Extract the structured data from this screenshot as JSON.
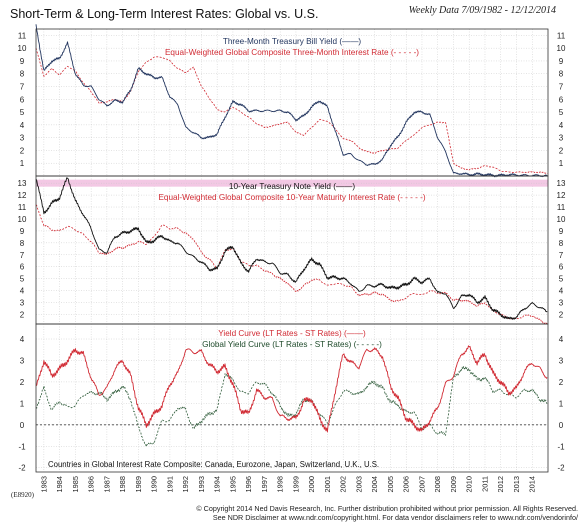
{
  "header": {
    "title": "Short-Term & Long-Term Interest Rates: Global vs. U.S.",
    "date": "Weekly Data 7/09/1982 - 12/12/2014"
  },
  "footer": {
    "code": "(E8920)",
    "copyright": "© Copyright 2014 Ned Davis Research, Inc. Further distribution prohibited without prior permission. All Rights Reserved.",
    "disclaimer": "See NDR Disclaimer at www.ndr.com/copyright.html. For data vendor disclaimers refer to www.ndr.com/vendorinfo/"
  },
  "colors": {
    "us": "#23365f",
    "global": "#d12b34",
    "ust": "#111111",
    "grid": "#c9c9c9",
    "band": "#f3c8e4"
  },
  "chart_data": [
    {
      "type": "line",
      "panel": "short-term",
      "x": [
        1982.5,
        1983.0,
        1983.5,
        1984.0,
        1984.5,
        1985.0,
        1985.5,
        1986.0,
        1986.5,
        1987.0,
        1987.5,
        1988.0,
        1988.5,
        1989.0,
        1989.5,
        1990.0,
        1990.5,
        1991.0,
        1991.5,
        1992.0,
        1992.5,
        1993.0,
        1993.5,
        1994.0,
        1994.5,
        1995.0,
        1995.5,
        1996.0,
        1996.5,
        1997.0,
        1997.5,
        1998.0,
        1998.5,
        1999.0,
        1999.5,
        2000.0,
        2000.5,
        2001.0,
        2001.5,
        2002.0,
        2002.5,
        2003.0,
        2003.5,
        2004.0,
        2004.5,
        2005.0,
        2005.5,
        2006.0,
        2006.5,
        2007.0,
        2007.5,
        2008.0,
        2008.5,
        2009.0,
        2009.5,
        2010.0,
        2010.5,
        2011.0,
        2011.5,
        2012.0,
        2012.5,
        2013.0,
        2013.5,
        2014.0,
        2014.5,
        2014.95
      ],
      "series": [
        {
          "name": "Three-Month Treasury Bill Yield",
          "values": [
            11.8,
            8.2,
            9.0,
            9.2,
            10.4,
            8.0,
            7.1,
            7.0,
            6.0,
            5.5,
            5.9,
            5.8,
            6.7,
            8.4,
            8.0,
            7.7,
            7.7,
            6.2,
            5.6,
            3.8,
            3.4,
            3.0,
            3.0,
            3.3,
            4.6,
            5.8,
            5.6,
            5.1,
            5.1,
            5.1,
            5.1,
            5.1,
            5.0,
            4.4,
            4.7,
            5.4,
            5.9,
            5.4,
            3.5,
            1.7,
            1.7,
            1.2,
            0.9,
            0.9,
            1.3,
            2.4,
            3.1,
            4.2,
            5.0,
            5.0,
            4.8,
            3.0,
            1.9,
            0.2,
            0.2,
            0.1,
            0.15,
            0.1,
            0.05,
            0.05,
            0.1,
            0.08,
            0.05,
            0.05,
            0.03,
            0.02
          ]
        },
        {
          "name": "Equal-Weighted Global Composite Three-Month Interest Rate",
          "values": [
            10.0,
            7.8,
            8.4,
            7.9,
            8.6,
            8.2,
            7.3,
            6.6,
            5.7,
            5.8,
            6.0,
            5.8,
            6.6,
            8.2,
            8.9,
            9.3,
            9.3,
            9.0,
            8.4,
            8.1,
            8.5,
            7.0,
            6.1,
            5.2,
            5.0,
            5.4,
            5.0,
            4.6,
            4.1,
            3.8,
            3.9,
            4.1,
            4.2,
            3.4,
            3.2,
            3.8,
            4.4,
            4.3,
            3.7,
            2.9,
            2.8,
            2.2,
            1.9,
            1.8,
            2.0,
            2.1,
            2.2,
            2.8,
            3.2,
            3.8,
            4.0,
            4.2,
            4.2,
            1.0,
            0.6,
            0.5,
            0.6,
            0.8,
            0.7,
            0.4,
            0.3,
            0.3,
            0.3,
            0.3,
            0.3,
            0.2
          ]
        }
      ],
      "ylim": [
        0,
        11.5
      ],
      "yticks": [
        1,
        2,
        3,
        4,
        5,
        6,
        7,
        8,
        9,
        10,
        11
      ]
    },
    {
      "type": "line",
      "panel": "long-term",
      "x": [
        1982.5,
        1983.0,
        1983.5,
        1984.0,
        1984.5,
        1985.0,
        1985.5,
        1986.0,
        1986.5,
        1987.0,
        1987.5,
        1988.0,
        1988.5,
        1989.0,
        1989.5,
        1990.0,
        1990.5,
        1991.0,
        1991.5,
        1992.0,
        1992.5,
        1993.0,
        1993.5,
        1994.0,
        1994.5,
        1995.0,
        1995.5,
        1996.0,
        1996.5,
        1997.0,
        1997.5,
        1998.0,
        1998.5,
        1999.0,
        1999.5,
        2000.0,
        2000.5,
        2001.0,
        2001.5,
        2002.0,
        2002.5,
        2003.0,
        2003.5,
        2004.0,
        2004.5,
        2005.0,
        2005.5,
        2006.0,
        2006.5,
        2007.0,
        2007.5,
        2008.0,
        2008.5,
        2009.0,
        2009.5,
        2010.0,
        2010.5,
        2011.0,
        2011.5,
        2012.0,
        2012.5,
        2013.0,
        2013.5,
        2014.0,
        2014.5,
        2014.95
      ],
      "series": [
        {
          "name": "10-Year Treasury Note Yield",
          "values": [
            13.5,
            10.5,
            11.3,
            11.8,
            13.5,
            11.5,
            10.4,
            9.2,
            7.4,
            7.2,
            8.5,
            8.8,
            9.0,
            9.2,
            8.0,
            8.2,
            8.6,
            8.1,
            8.0,
            7.3,
            6.8,
            6.4,
            5.8,
            5.8,
            7.3,
            7.7,
            6.3,
            5.6,
            6.7,
            6.4,
            6.3,
            5.5,
            5.3,
            4.7,
            5.8,
            6.6,
            6.2,
            5.1,
            5.1,
            5.0,
            4.6,
            3.9,
            4.4,
            4.4,
            4.5,
            4.2,
            4.3,
            4.5,
            5.0,
            4.7,
            5.0,
            3.8,
            3.8,
            2.5,
            3.5,
            3.7,
            3.0,
            3.4,
            2.4,
            2.0,
            1.6,
            1.8,
            2.5,
            2.9,
            2.6,
            2.2
          ]
        },
        {
          "name": "Equal-Weighted Global Composite 10-Year Maturity Interest Rate",
          "values": [
            11.2,
            9.5,
            9.1,
            9.0,
            9.4,
            9.1,
            8.7,
            8.1,
            7.2,
            7.0,
            7.5,
            7.6,
            7.8,
            8.1,
            7.9,
            8.5,
            9.5,
            9.2,
            9.2,
            8.8,
            8.3,
            7.2,
            6.6,
            5.9,
            7.4,
            7.5,
            6.5,
            6.1,
            6.1,
            5.7,
            5.4,
            5.0,
            4.6,
            3.9,
            4.4,
            4.9,
            4.9,
            4.4,
            4.6,
            4.5,
            4.3,
            3.6,
            3.7,
            3.8,
            3.7,
            3.2,
            3.1,
            3.4,
            3.8,
            3.6,
            4.0,
            3.8,
            3.8,
            3.2,
            3.2,
            3.1,
            2.7,
            3.0,
            2.3,
            2.0,
            1.7,
            1.6,
            1.9,
            1.9,
            1.5,
            1.2
          ]
        }
      ],
      "ylim": [
        1.2,
        13.6
      ],
      "yticks": [
        2,
        3,
        4,
        5,
        6,
        7,
        8,
        9,
        10,
        11,
        12,
        13
      ]
    },
    {
      "type": "line",
      "panel": "yield-curve",
      "x": [
        1982.5,
        1983.0,
        1983.5,
        1984.0,
        1984.5,
        1985.0,
        1985.5,
        1986.0,
        1986.5,
        1987.0,
        1987.5,
        1988.0,
        1988.5,
        1989.0,
        1989.5,
        1990.0,
        1990.5,
        1991.0,
        1991.5,
        1992.0,
        1992.5,
        1993.0,
        1993.5,
        1994.0,
        1994.5,
        1995.0,
        1995.5,
        1996.0,
        1996.5,
        1997.0,
        1997.5,
        1998.0,
        1998.5,
        1999.0,
        1999.5,
        2000.0,
        2000.5,
        2001.0,
        2001.5,
        2002.0,
        2002.5,
        2003.0,
        2003.5,
        2004.0,
        2004.5,
        2005.0,
        2005.5,
        2006.0,
        2006.5,
        2007.0,
        2007.5,
        2008.0,
        2008.5,
        2009.0,
        2009.5,
        2010.0,
        2010.5,
        2011.0,
        2011.5,
        2012.0,
        2012.5,
        2013.0,
        2013.5,
        2014.0,
        2014.5,
        2014.95
      ],
      "series": [
        {
          "name": "Yield Curve (LT Rates - ST Rates)",
          "values": [
            1.7,
            3.0,
            2.3,
            2.6,
            3.0,
            3.5,
            3.3,
            2.2,
            1.4,
            1.7,
            2.6,
            3.0,
            2.3,
            0.8,
            0.0,
            0.5,
            0.9,
            1.9,
            2.4,
            3.5,
            3.4,
            3.4,
            2.8,
            2.5,
            2.7,
            1.9,
            0.7,
            0.5,
            1.6,
            1.3,
            1.2,
            0.4,
            0.3,
            0.3,
            1.1,
            1.2,
            0.3,
            -0.3,
            1.6,
            3.3,
            2.9,
            2.7,
            3.5,
            3.5,
            3.2,
            1.8,
            1.2,
            0.3,
            0.0,
            -0.3,
            0.2,
            0.8,
            1.9,
            2.3,
            3.3,
            3.6,
            2.9,
            3.3,
            2.4,
            2.0,
            1.5,
            1.7,
            2.5,
            2.9,
            2.6,
            2.2
          ]
        },
        {
          "name": "Global Yield Curve (LT Rates - ST Rates)",
          "values": [
            0.8,
            1.7,
            0.7,
            1.1,
            0.8,
            0.9,
            1.4,
            1.5,
            1.5,
            1.2,
            1.5,
            1.8,
            1.2,
            -0.1,
            -1.0,
            -0.8,
            0.2,
            0.2,
            0.8,
            0.7,
            -0.2,
            0.2,
            0.5,
            0.7,
            2.4,
            2.1,
            1.5,
            1.5,
            2.0,
            1.9,
            1.5,
            0.9,
            0.4,
            0.5,
            1.2,
            1.1,
            0.5,
            0.1,
            0.9,
            1.6,
            1.5,
            1.4,
            1.8,
            2.0,
            1.7,
            1.1,
            0.9,
            0.6,
            0.6,
            -0.2,
            0.0,
            -0.4,
            -0.4,
            2.2,
            2.6,
            2.6,
            2.1,
            2.2,
            1.6,
            1.6,
            1.4,
            1.3,
            1.6,
            1.6,
            1.2,
            1.0
          ]
        }
      ],
      "ylim": [
        -2.2,
        4.7
      ],
      "yticks": [
        -2,
        -1,
        0,
        1,
        2,
        3,
        4
      ]
    }
  ],
  "legends": {
    "short": [
      {
        "text": "Three-Month Treasury Bill Yield (——)",
        "color": "#23365f"
      },
      {
        "text": "Equal-Weighted Global Composite Three-Month Interest Rate (- - - - -)",
        "color": "#d12b34"
      }
    ],
    "long": [
      {
        "text": "10-Year Treasury Note Yield (——)",
        "color": "#111111"
      },
      {
        "text": "Equal-Weighted Global Composite 10-Year Maturity Interest Rate (- - - - -)",
        "color": "#d12b34"
      }
    ],
    "curve": [
      {
        "text": "Yield Curve (LT Rates - ST Rates) (——)",
        "color": "#d12b34"
      },
      {
        "text": "Global Yield Curve (LT Rates - ST Rates) (- - - - -)",
        "color": "#1e4a2a"
      }
    ]
  },
  "note": "Countries in Global Interest Rate Composite: Canada, Eurozone, Japan, Switzerland, U.K., U.S.",
  "x_axis": {
    "labels": [
      "1983",
      "1984",
      "1985",
      "1986",
      "1987",
      "1988",
      "1989",
      "1990",
      "1991",
      "1992",
      "1993",
      "1994",
      "1995",
      "1996",
      "1997",
      "1998",
      "1999",
      "2000",
      "2001",
      "2002",
      "2003",
      "2004",
      "2005",
      "2006",
      "2007",
      "2008",
      "2009",
      "2010",
      "2011",
      "2012",
      "2013",
      "2014"
    ],
    "range": [
      1982.5,
      2015.0
    ]
  }
}
